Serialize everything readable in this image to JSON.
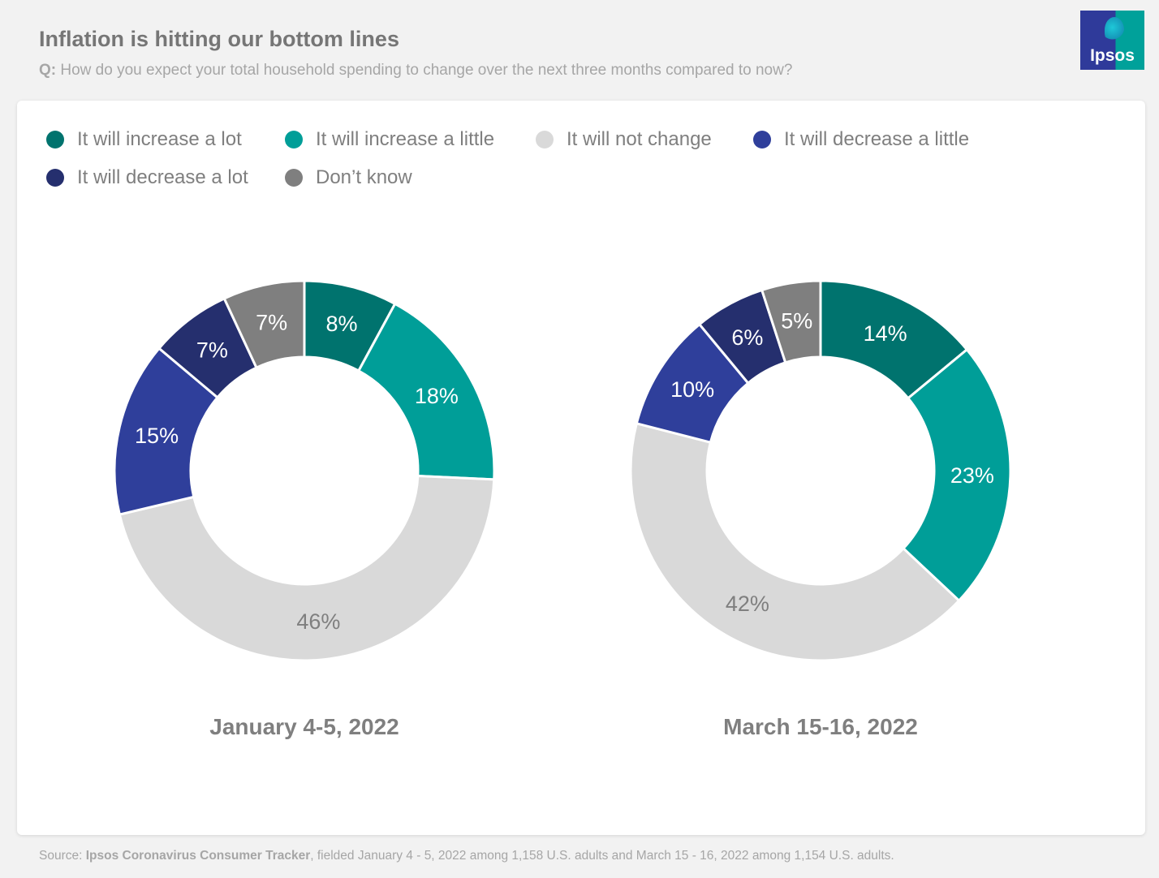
{
  "header": {
    "title": "Inflation is hitting our bottom lines",
    "question_prefix": "Q:",
    "question": "How do you expect your total household spending to change over the next three months compared to now?",
    "logo_text": "Ipsos"
  },
  "legend": [
    {
      "label": "It will increase a lot",
      "color": "#00736e"
    },
    {
      "label": "It will increase a little",
      "color": "#009e98"
    },
    {
      "label": "It will not change",
      "color": "#d9d9d9"
    },
    {
      "label": "It will decrease a little",
      "color": "#2f3f9b"
    },
    {
      "label": "It will decrease a lot",
      "color": "#252f6e"
    },
    {
      "label": "Don’t know",
      "color": "#7f7f7f"
    }
  ],
  "chart_data": [
    {
      "type": "pie",
      "variant": "donut",
      "title": "January 4-5, 2022",
      "categories": [
        "It will increase a lot",
        "It will increase a little",
        "It will not change",
        "It will decrease a little",
        "It will decrease a lot",
        "Don’t know"
      ],
      "values": [
        8,
        18,
        46,
        15,
        7,
        7
      ],
      "labels": [
        "8%",
        "18%",
        "46%",
        "15%",
        "7%",
        "7%"
      ]
    },
    {
      "type": "pie",
      "variant": "donut",
      "title": "March 15-16, 2022",
      "categories": [
        "It will increase a lot",
        "It will increase a little",
        "It will not change",
        "It will decrease a little",
        "It will decrease a lot",
        "Don’t know"
      ],
      "values": [
        14,
        23,
        42,
        10,
        6,
        5
      ],
      "labels": [
        "14%",
        "23%",
        "42%",
        "10%",
        "6%",
        "5%"
      ]
    }
  ],
  "footer": {
    "source_prefix": "Source:",
    "source_name": "Ipsos Coronavirus Consumer Tracker",
    "source_rest": ", fielded January 4 - 5, 2022 among 1,158 U.S. adults and March 15 - 16, 2022 among 1,154 U.S. adults."
  }
}
